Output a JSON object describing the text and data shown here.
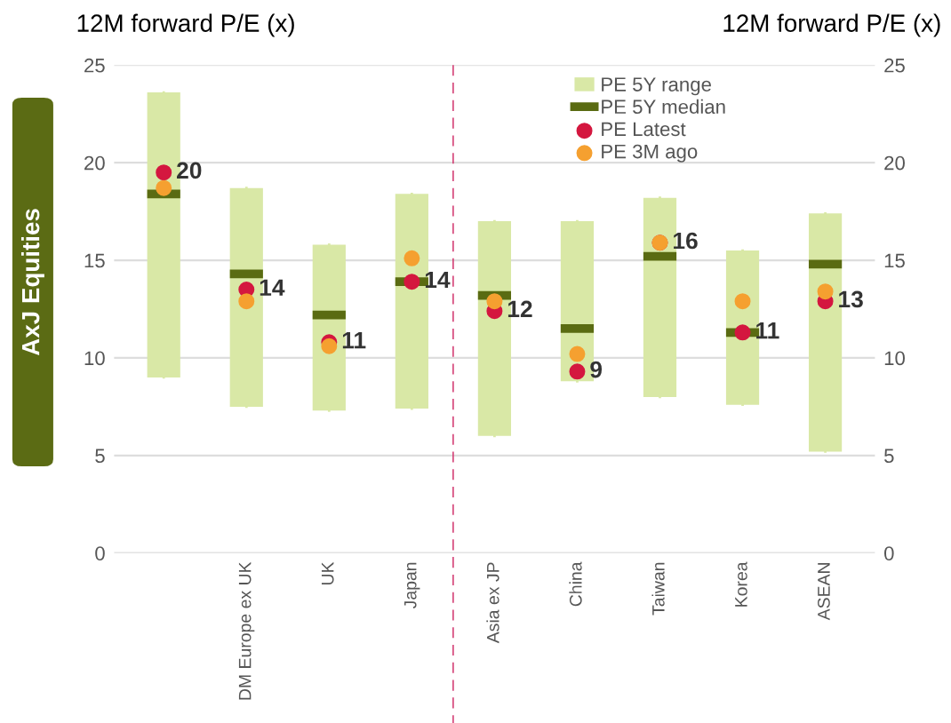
{
  "chart_data": {
    "type": "box",
    "ylabel": "12M forward P/E (x)",
    "y2label": "12M forward P/E (x)",
    "annotations": [
      "AxJ Equities"
    ],
    "categories": [
      null,
      "DM Europe ex UK",
      "UK",
      "Japan",
      "Asia ex JP",
      "China",
      "Taiwan",
      "Korea",
      "ASEAN"
    ],
    "series": [
      {
        "name": "PE 5Y range",
        "color": "#d9e8a6",
        "boxes": [
          {
            "low": 9.0,
            "q1": 9.0,
            "median": 18.4,
            "q3": 23.6,
            "high": 23.6
          },
          {
            "low": 7.5,
            "q1": 7.5,
            "median": 14.3,
            "q3": 18.7,
            "high": 18.7
          },
          {
            "low": 7.3,
            "q1": 7.3,
            "median": 12.2,
            "q3": 15.8,
            "high": 15.8
          },
          {
            "low": 7.4,
            "q1": 7.4,
            "median": 13.9,
            "q3": 18.4,
            "high": 18.4
          },
          {
            "low": 6.0,
            "q1": 6.0,
            "median": 13.2,
            "q3": 17.0,
            "high": 17.0
          },
          {
            "low": 8.8,
            "q1": 8.8,
            "median": 11.5,
            "q3": 17.0,
            "high": 17.0
          },
          {
            "low": 8.0,
            "q1": 8.0,
            "median": 15.2,
            "q3": 18.2,
            "high": 18.2
          },
          {
            "low": 7.6,
            "q1": 7.6,
            "median": 11.3,
            "q3": 15.5,
            "high": 15.5
          },
          {
            "low": 5.2,
            "q1": 5.2,
            "median": 14.8,
            "q3": 17.4,
            "high": 17.4
          }
        ]
      },
      {
        "name": "PE 5Y median",
        "color": "#5a6b12",
        "boxes": [
          {
            "low": 18.4,
            "q1": 18.4,
            "median": 18.4,
            "q3": 18.4,
            "high": 18.4
          },
          {
            "low": 14.3,
            "q1": 14.3,
            "median": 14.3,
            "q3": 14.3,
            "high": 14.3
          },
          {
            "low": 12.2,
            "q1": 12.2,
            "median": 12.2,
            "q3": 12.2,
            "high": 12.2
          },
          {
            "low": 13.9,
            "q1": 13.9,
            "median": 13.9,
            "q3": 13.9,
            "high": 13.9
          },
          {
            "low": 13.2,
            "q1": 13.2,
            "median": 13.2,
            "q3": 13.2,
            "high": 13.2
          },
          {
            "low": 11.5,
            "q1": 11.5,
            "median": 11.5,
            "q3": 11.5,
            "high": 11.5
          },
          {
            "low": 15.2,
            "q1": 15.2,
            "median": 15.2,
            "q3": 15.2,
            "high": 15.2
          },
          {
            "low": 11.3,
            "q1": 11.3,
            "median": 11.3,
            "q3": 11.3,
            "high": 11.3
          },
          {
            "low": 14.8,
            "q1": 14.8,
            "median": 14.8,
            "q3": 14.8,
            "high": 14.8
          }
        ]
      },
      {
        "name": "PE Latest",
        "type": "scatter",
        "marker": "circle",
        "color": "#d4173f",
        "values": [
          19.5,
          13.5,
          10.8,
          13.9,
          12.4,
          9.3,
          15.9,
          11.3,
          12.9
        ],
        "value_labels": [
          "20",
          "14",
          "11",
          "14",
          "12",
          "9",
          "16",
          "11",
          "13"
        ]
      },
      {
        "name": "PE 3M ago",
        "type": "scatter",
        "marker": "circle",
        "color": "#f5a030",
        "values": [
          18.7,
          12.9,
          10.6,
          15.1,
          12.9,
          10.2,
          15.9,
          12.9,
          13.4
        ]
      }
    ],
    "ylim": [
      0,
      25
    ],
    "yticks": [
      0,
      5,
      10,
      15,
      20,
      25
    ],
    "y2lim": [
      0,
      25
    ],
    "y2ticks": [
      0,
      5,
      10,
      15,
      20,
      25
    ],
    "grid": "y",
    "legend": "top right"
  }
}
